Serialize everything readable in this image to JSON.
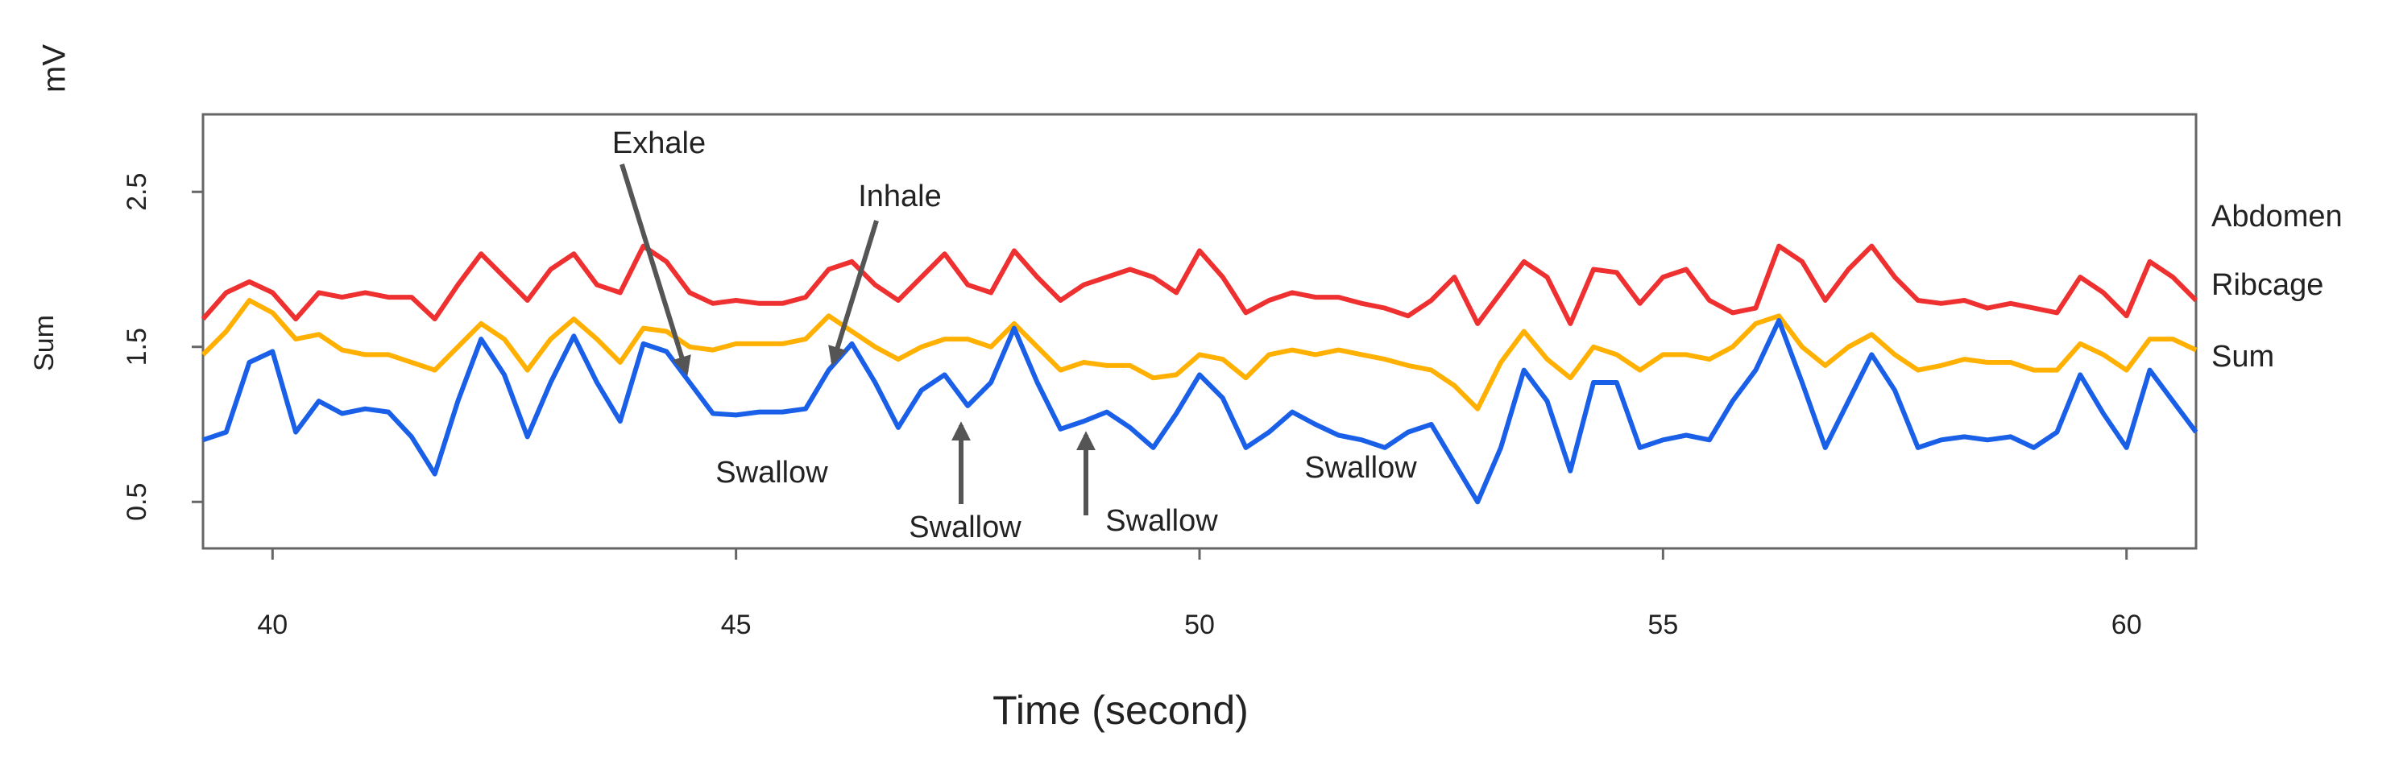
{
  "chart_data": {
    "type": "line",
    "corner_label": "mV",
    "y_label": "Sum",
    "x_label": "Time (second)",
    "xlim": [
      39.25,
      60.75
    ],
    "xticks": [
      40,
      45,
      50,
      55,
      60
    ],
    "ylim": [
      0.2,
      3.0
    ],
    "yticks": [
      0.5,
      1.5,
      2.5
    ],
    "x": [
      39.25,
      39.5,
      39.75,
      40,
      40.25,
      40.5,
      40.75,
      41,
      41.25,
      41.5,
      41.75,
      42,
      42.25,
      42.5,
      42.75,
      43,
      43.25,
      43.5,
      43.75,
      44,
      44.25,
      44.5,
      44.75,
      45,
      45.25,
      45.5,
      45.75,
      46,
      46.25,
      46.5,
      46.75,
      47,
      47.25,
      47.5,
      47.75,
      48,
      48.25,
      48.5,
      48.75,
      49,
      49.25,
      49.5,
      49.75,
      50,
      50.25,
      50.5,
      50.75,
      51,
      51.25,
      51.5,
      51.75,
      52,
      52.25,
      52.5,
      52.75,
      53,
      53.25,
      53.5,
      53.75,
      54,
      54.25,
      54.5,
      54.75,
      55,
      55.25,
      55.5,
      55.75,
      56,
      56.25,
      56.5,
      56.75,
      57,
      57.25,
      57.5,
      57.75,
      58,
      58.25,
      58.5,
      58.75,
      59,
      59.25,
      59.5,
      59.75,
      60,
      60.25,
      60.5,
      60.75
    ],
    "series": [
      {
        "name": "Abdomen",
        "color": "#ee3030",
        "values": [
          1.68,
          1.85,
          1.92,
          1.85,
          1.68,
          1.85,
          1.82,
          1.85,
          1.82,
          1.82,
          1.68,
          1.9,
          2.1,
          1.95,
          1.8,
          2.0,
          2.1,
          1.9,
          1.85,
          2.15,
          2.05,
          1.85,
          1.78,
          1.8,
          1.78,
          1.78,
          1.82,
          2.0,
          2.05,
          1.9,
          1.8,
          1.95,
          2.1,
          1.9,
          1.85,
          2.12,
          1.95,
          1.8,
          1.9,
          1.95,
          2.0,
          1.95,
          1.85,
          2.12,
          1.95,
          1.72,
          1.8,
          1.85,
          1.82,
          1.82,
          1.78,
          1.75,
          1.7,
          1.8,
          1.95,
          1.65,
          1.85,
          2.05,
          1.95,
          1.65,
          2.0,
          1.98,
          1.78,
          1.95,
          2.0,
          1.8,
          1.72,
          1.75,
          2.15,
          2.05,
          1.8,
          2.0,
          2.15,
          1.95,
          1.8,
          1.78,
          1.8,
          1.75,
          1.78,
          1.75,
          1.72,
          1.95,
          1.85,
          1.7,
          2.05,
          1.95,
          1.8
        ]
      },
      {
        "name": "Ribcage",
        "color": "#ffb000",
        "values": [
          1.45,
          1.6,
          1.8,
          1.72,
          1.55,
          1.58,
          1.48,
          1.45,
          1.45,
          1.4,
          1.35,
          1.5,
          1.65,
          1.55,
          1.35,
          1.55,
          1.68,
          1.55,
          1.4,
          1.62,
          1.6,
          1.5,
          1.48,
          1.52,
          1.52,
          1.52,
          1.55,
          1.7,
          1.6,
          1.5,
          1.42,
          1.5,
          1.55,
          1.55,
          1.5,
          1.65,
          1.5,
          1.35,
          1.4,
          1.38,
          1.38,
          1.3,
          1.32,
          1.45,
          1.42,
          1.3,
          1.45,
          1.48,
          1.45,
          1.48,
          1.45,
          1.42,
          1.38,
          1.35,
          1.25,
          1.1,
          1.4,
          1.6,
          1.42,
          1.3,
          1.5,
          1.45,
          1.35,
          1.45,
          1.45,
          1.42,
          1.5,
          1.65,
          1.7,
          1.5,
          1.38,
          1.5,
          1.58,
          1.45,
          1.35,
          1.38,
          1.42,
          1.4,
          1.4,
          1.35,
          1.35,
          1.52,
          1.45,
          1.35,
          1.55,
          1.55,
          1.48
        ]
      },
      {
        "name": "Sum",
        "color": "#1a5fe8",
        "values": [
          0.9,
          0.95,
          1.4,
          1.47,
          0.95,
          1.15,
          1.07,
          1.1,
          1.08,
          0.92,
          0.68,
          1.15,
          1.55,
          1.32,
          0.92,
          1.27,
          1.57,
          1.27,
          1.02,
          1.52,
          1.47,
          1.27,
          1.07,
          1.06,
          1.08,
          1.08,
          1.1,
          1.35,
          1.52,
          1.27,
          0.98,
          1.22,
          1.32,
          1.12,
          1.27,
          1.62,
          1.27,
          0.97,
          1.02,
          1.08,
          0.98,
          0.85,
          1.07,
          1.32,
          1.17,
          0.85,
          0.95,
          1.08,
          1.0,
          0.93,
          0.9,
          0.85,
          0.95,
          1.0,
          0.75,
          0.5,
          0.85,
          1.35,
          1.15,
          0.7,
          1.27,
          1.27,
          0.85,
          0.9,
          0.93,
          0.9,
          1.15,
          1.35,
          1.67,
          1.27,
          0.85,
          1.15,
          1.45,
          1.22,
          0.85,
          0.9,
          0.92,
          0.9,
          0.92,
          0.85,
          0.95,
          1.32,
          1.07,
          0.85,
          1.35,
          1.15,
          0.95
        ]
      }
    ],
    "annotations": [
      "Exhale",
      "Inhale",
      "Swallow",
      "Swallow",
      "Swallow",
      "Swallow"
    ]
  }
}
